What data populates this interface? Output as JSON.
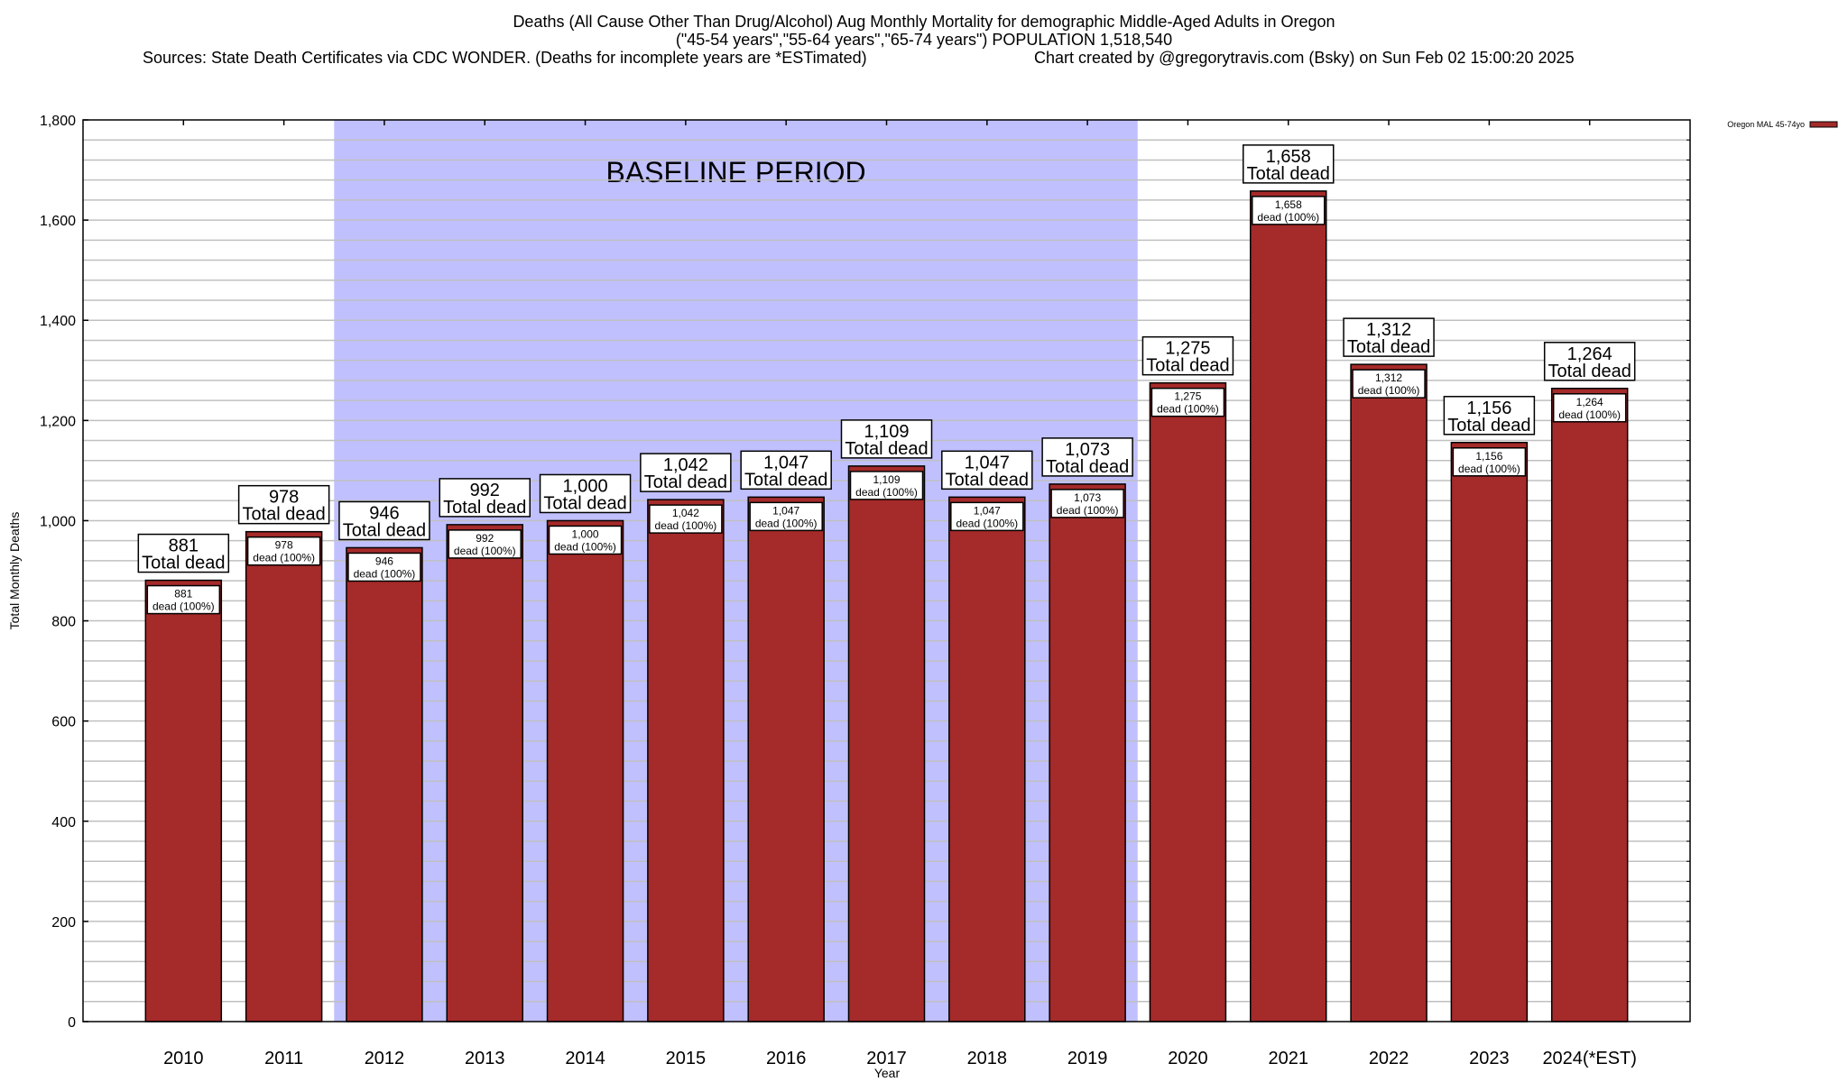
{
  "header": {
    "line1": "Deaths (All Cause Other Than Drug/Alcohol) Aug Monthly Mortality for demographic Middle-Aged Adults in Oregon",
    "line2": "(\"45-54 years\",\"55-64 years\",\"65-74 years\") POPULATION 1,518,540",
    "line3_left": "Sources: State Death Certificates via CDC WONDER. (Deaths for incomplete years are *ESTimated)",
    "line3_right": "Chart created by @gregorytravis.com (Bsky) on Sun Feb 02 15:00:20 2025"
  },
  "chart_data": {
    "type": "bar",
    "title": "Deaths (All Cause Other Than Drug/Alcohol) Aug Monthly Mortality for demographic Middle-Aged Adults in Oregon",
    "xlabel": "Year",
    "ylabel": "Total Monthly Deaths",
    "ylim": [
      0,
      1800
    ],
    "yticks": [
      0,
      200,
      400,
      600,
      800,
      1000,
      1200,
      1400,
      1600,
      1800
    ],
    "ytick_labels": [
      "0",
      "200",
      "400",
      "600",
      "800",
      "1,000",
      "1,200",
      "1,400",
      "1,600",
      "1,800"
    ],
    "minor_grid_step": 40,
    "grid": true,
    "categories": [
      "2010",
      "2011",
      "2012",
      "2013",
      "2014",
      "2015",
      "2016",
      "2017",
      "2018",
      "2019",
      "2020",
      "2021",
      "2022",
      "2023",
      "2024(*EST)"
    ],
    "series": [
      {
        "name": "Oregon MAL 45-74yo",
        "color": "#a52a2a",
        "values": [
          881,
          978,
          946,
          992,
          1000,
          1042,
          1047,
          1109,
          1047,
          1073,
          1275,
          1658,
          1312,
          1156,
          1264
        ],
        "value_labels": [
          "881",
          "978",
          "946",
          "992",
          "1,000",
          "1,042",
          "1,047",
          "1,109",
          "1,047",
          "1,073",
          "1,275",
          "1,658",
          "1,312",
          "1,156",
          "1,264"
        ]
      }
    ],
    "top_label_suffix": "Total dead",
    "inner_label_suffix": "dead (100%)",
    "baseline": {
      "label": "BASELINE PERIOD",
      "from_category": "2012",
      "to_category": "2019",
      "color": "#c0c0ff"
    },
    "legend": {
      "position": "top-right",
      "entries": [
        "Oregon MAL 45-74yo"
      ]
    }
  }
}
